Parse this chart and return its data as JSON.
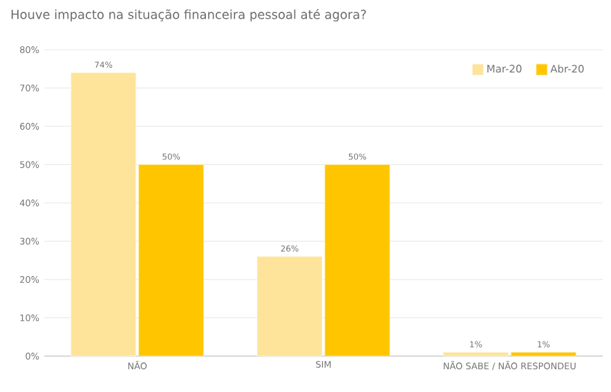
{
  "chart_data": {
    "type": "bar",
    "title": "Houve impacto na situação financeira pessoal até agora?",
    "categories": [
      "NÃO",
      "SIM",
      "NÃO SABE / NÃO RESPONDEU"
    ],
    "series": [
      {
        "name": "Mar-20",
        "color": "#fde49a",
        "values": [
          74,
          26,
          1
        ],
        "value_labels": [
          "74%",
          "26%",
          "1%"
        ]
      },
      {
        "name": "Abr-20",
        "color": "#ffc600",
        "values": [
          50,
          50,
          1
        ],
        "value_labels": [
          "50%",
          "50%",
          "1%"
        ]
      }
    ],
    "ylim": [
      0,
      80
    ],
    "yticks": [
      {
        "value": 0,
        "label": "0%"
      },
      {
        "value": 10,
        "label": "10%"
      },
      {
        "value": 20,
        "label": "20%"
      },
      {
        "value": 30,
        "label": "30%"
      },
      {
        "value": 40,
        "label": "40%"
      },
      {
        "value": 50,
        "label": "50%"
      },
      {
        "value": 60,
        "label": "60%"
      },
      {
        "value": 70,
        "label": "70%"
      },
      {
        "value": 80,
        "label": "80%"
      }
    ],
    "grid": "y",
    "legend": "top right"
  }
}
